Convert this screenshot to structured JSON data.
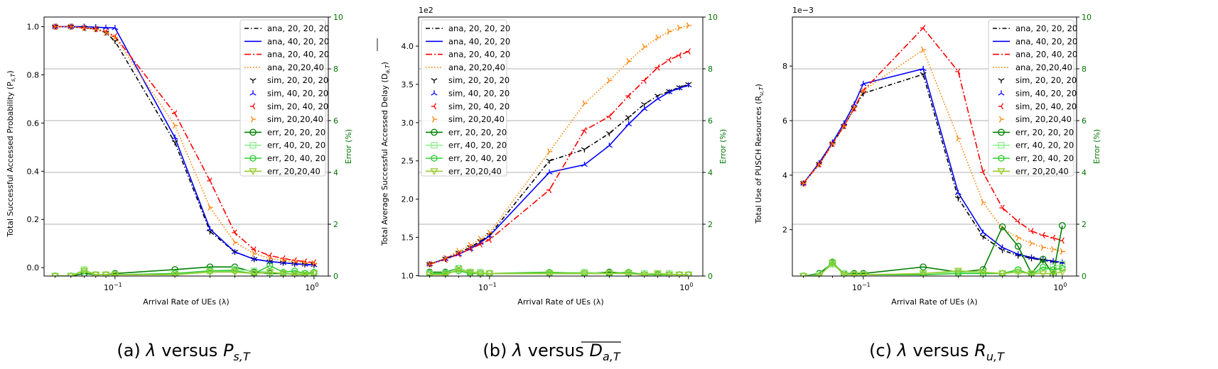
{
  "chart_data": [
    {
      "type": "line",
      "caption": {
        "pre": "(a) ",
        "mid": " versus ",
        "lambda": "λ",
        "sym": "P",
        "sub": "s,T",
        "overline": false
      },
      "xlabel": "Arrival Rate of UEs (λ)",
      "ylabel": "Total Successful Accessed Probability (P",
      "ylabel_sub": "s,T",
      "ylabel_post": ")",
      "y2label": "Error (%)",
      "xscale": "log",
      "xlim": [
        0.044,
        1.18
      ],
      "ylim": [
        -0.035,
        1.04
      ],
      "yticks": [
        0.0,
        0.2,
        0.4,
        0.6,
        0.8,
        1.0
      ],
      "ytick_labels": [
        "0.0",
        "0.2",
        "0.4",
        "0.6",
        "0.8",
        "1.0"
      ],
      "y_multiplier": "",
      "y2lim": [
        0,
        10
      ],
      "y2ticks": [
        0,
        2,
        4,
        6,
        8,
        10
      ],
      "y2tick_labels": [
        "0",
        "2",
        "4",
        "6",
        "8",
        "10"
      ],
      "xtick_labels": {
        "major1": "10",
        "major1_exp": "−1",
        "major2": "10",
        "major2_exp": "0"
      },
      "grid": "y2-axis horizontal",
      "legend_position": "upper-right",
      "x": [
        0.05,
        0.06,
        0.07,
        0.08,
        0.09,
        0.1,
        0.2,
        0.3,
        0.4,
        0.5,
        0.6,
        0.7,
        0.8,
        0.9,
        1.0
      ],
      "series": [
        {
          "name": "ana, 20, 20, 20",
          "color": "#000000",
          "dash": "6,3,1.5,3",
          "values": [
            1.0,
            1.0,
            0.995,
            0.99,
            0.975,
            0.94,
            0.52,
            0.15,
            0.065,
            0.035,
            0.025,
            0.02,
            0.016,
            0.013,
            0.011
          ]
        },
        {
          "name": "ana, 40, 20, 20",
          "color": "#0000ff",
          "dash": "",
          "values": [
            1.0,
            1.0,
            1.0,
            0.998,
            0.996,
            0.995,
            0.54,
            0.16,
            0.065,
            0.035,
            0.025,
            0.02,
            0.016,
            0.013,
            0.011
          ]
        },
        {
          "name": "ana, 20, 40, 20",
          "color": "#ff0000",
          "dash": "9,3,2,3",
          "values": [
            1.0,
            1.0,
            0.995,
            0.99,
            0.98,
            0.96,
            0.64,
            0.36,
            0.145,
            0.075,
            0.05,
            0.038,
            0.03,
            0.025,
            0.021
          ]
        },
        {
          "name": "ana, 20,20,40",
          "color": "#ff8000",
          "dash": "1.5,2.5",
          "values": [
            1.0,
            1.0,
            0.995,
            0.99,
            0.975,
            0.955,
            0.59,
            0.25,
            0.105,
            0.058,
            0.038,
            0.03,
            0.024,
            0.02,
            0.017
          ]
        },
        {
          "name": "sim, 20, 20, 20",
          "color": "#000000",
          "dash": "none",
          "values": [
            1.0,
            1.0,
            0.995,
            0.99,
            0.975,
            0.94,
            0.52,
            0.15,
            0.065,
            0.035,
            0.025,
            0.02,
            0.016,
            0.013,
            0.011
          ]
        },
        {
          "name": "sim, 40, 20, 20",
          "color": "#0000ff",
          "dash": "none",
          "values": [
            1.0,
            1.0,
            1.0,
            0.998,
            0.996,
            0.995,
            0.54,
            0.16,
            0.065,
            0.035,
            0.025,
            0.02,
            0.016,
            0.013,
            0.011
          ]
        },
        {
          "name": "sim, 20, 40, 20",
          "color": "#ff0000",
          "dash": "none",
          "values": [
            1.0,
            1.0,
            0.995,
            0.99,
            0.98,
            0.96,
            0.64,
            0.36,
            0.145,
            0.075,
            0.05,
            0.038,
            0.03,
            0.025,
            0.021
          ]
        },
        {
          "name": "sim, 20,20,40",
          "color": "#ff8000",
          "dash": "none",
          "values": [
            1.0,
            1.0,
            0.995,
            0.99,
            0.975,
            0.955,
            0.59,
            0.25,
            0.105,
            0.058,
            0.038,
            0.03,
            0.024,
            0.02,
            0.017
          ]
        },
        {
          "name": "err, 20, 20, 20",
          "color": "#008000",
          "dash": "",
          "axis": "y2",
          "values": [
            0.0,
            0.0,
            0.1,
            0.05,
            0.05,
            0.1,
            0.25,
            0.35,
            0.35,
            0.15,
            0.1,
            0.1,
            0.1,
            0.1,
            0.1
          ]
        },
        {
          "name": "err, 40, 20, 20",
          "color": "#90ee90",
          "dash": "",
          "axis": "y2",
          "values": [
            0.0,
            0.0,
            0.25,
            0.05,
            0.05,
            0.05,
            0.1,
            0.2,
            0.25,
            0.2,
            0.15,
            0.1,
            0.1,
            0.1,
            0.1
          ]
        },
        {
          "name": "err, 20, 40, 20",
          "color": "#32cd32",
          "dash": "",
          "axis": "y2",
          "values": [
            0.0,
            0.0,
            0.2,
            0.05,
            0.05,
            0.05,
            0.1,
            0.2,
            0.2,
            0.1,
            0.4,
            0.15,
            0.2,
            0.1,
            0.15
          ]
        },
        {
          "name": "err, 20,20,40",
          "color": "#9acd32",
          "dash": "",
          "axis": "y2",
          "values": [
            0.0,
            0.0,
            0.2,
            0.05,
            0.05,
            0.05,
            0.05,
            0.15,
            0.15,
            0.1,
            0.15,
            0.1,
            0.05,
            0.05,
            0.1
          ]
        }
      ]
    },
    {
      "type": "line",
      "caption": {
        "pre": "(b) ",
        "mid": " versus ",
        "lambda": "λ",
        "sym": "D",
        "sub": "a,T",
        "overline": true
      },
      "xlabel": "Arrival Rate of UEs (λ)",
      "ylabel": "Total Average Successful Accessed Delay (D",
      "ylabel_sub": "a,T",
      "ylabel_post": ")",
      "y2label": "Error (%)",
      "xscale": "log",
      "xlim": [
        0.044,
        1.18
      ],
      "ylim": [
        0.995,
        4.38
      ],
      "yticks": [
        1.0,
        1.5,
        2.0,
        2.5,
        3.0,
        3.5,
        4.0
      ],
      "ytick_labels": [
        "1.0",
        "1.5",
        "2.0",
        "2.5",
        "3.0",
        "3.5",
        "4.0"
      ],
      "y_multiplier": "1e2",
      "y2lim": [
        0,
        10
      ],
      "y2ticks": [
        0,
        2,
        4,
        6,
        8,
        10
      ],
      "y2tick_labels": [
        "0",
        "2",
        "4",
        "6",
        "8",
        "10"
      ],
      "xtick_labels": {
        "major1": "10",
        "major1_exp": "−1",
        "major2": "10",
        "major2_exp": "0"
      },
      "grid": "y2-axis horizontal",
      "legend_position": "upper-left",
      "x": [
        0.05,
        0.06,
        0.07,
        0.08,
        0.09,
        0.1,
        0.2,
        0.3,
        0.4,
        0.5,
        0.6,
        0.7,
        0.8,
        0.9,
        1.0
      ],
      "series": [
        {
          "name": "ana, 20, 20, 20",
          "color": "#000000",
          "dash": "6,3,1.5,3",
          "values": [
            1.15,
            1.22,
            1.3,
            1.37,
            1.45,
            1.53,
            2.5,
            2.65,
            2.86,
            3.07,
            3.24,
            3.35,
            3.41,
            3.46,
            3.5
          ]
        },
        {
          "name": "ana, 40, 20, 20",
          "color": "#0000ff",
          "dash": "",
          "values": [
            1.15,
            1.22,
            1.28,
            1.35,
            1.43,
            1.52,
            2.35,
            2.45,
            2.7,
            2.98,
            3.18,
            3.31,
            3.4,
            3.45,
            3.49
          ]
        },
        {
          "name": "ana, 20, 40, 20",
          "color": "#ff0000",
          "dash": "9,3,2,3",
          "values": [
            1.15,
            1.21,
            1.28,
            1.35,
            1.41,
            1.47,
            2.12,
            2.9,
            3.08,
            3.35,
            3.55,
            3.72,
            3.82,
            3.88,
            3.93
          ]
        },
        {
          "name": "ana, 20,20,40",
          "color": "#ff8000",
          "dash": "1.5,2.5",
          "values": [
            1.15,
            1.23,
            1.32,
            1.4,
            1.48,
            1.56,
            2.62,
            3.25,
            3.55,
            3.8,
            3.99,
            4.11,
            4.19,
            4.24,
            4.27
          ]
        },
        {
          "name": "sim, 20, 20, 20",
          "color": "#000000",
          "dash": "none",
          "values": [
            1.15,
            1.22,
            1.3,
            1.37,
            1.45,
            1.53,
            2.5,
            2.65,
            2.86,
            3.07,
            3.24,
            3.35,
            3.41,
            3.46,
            3.5
          ]
        },
        {
          "name": "sim, 40, 20, 20",
          "color": "#0000ff",
          "dash": "none",
          "values": [
            1.15,
            1.22,
            1.28,
            1.35,
            1.43,
            1.52,
            2.35,
            2.45,
            2.7,
            2.98,
            3.18,
            3.31,
            3.4,
            3.45,
            3.49
          ]
        },
        {
          "name": "sim, 20, 40, 20",
          "color": "#ff0000",
          "dash": "none",
          "values": [
            1.15,
            1.21,
            1.28,
            1.35,
            1.41,
            1.47,
            2.12,
            2.9,
            3.08,
            3.35,
            3.55,
            3.72,
            3.82,
            3.88,
            3.93
          ]
        },
        {
          "name": "sim, 20,20,40",
          "color": "#ff8000",
          "dash": "none",
          "values": [
            1.15,
            1.23,
            1.32,
            1.4,
            1.48,
            1.56,
            2.62,
            3.25,
            3.55,
            3.8,
            3.99,
            4.11,
            4.19,
            4.24,
            4.27
          ]
        },
        {
          "name": "err, 20, 20, 20",
          "color": "#008000",
          "dash": "",
          "axis": "y2",
          "values": [
            0.15,
            0.15,
            0.3,
            0.15,
            0.1,
            0.1,
            0.1,
            0.1,
            0.15,
            0.1,
            0.05,
            0.05,
            0.05,
            0.05,
            0.05
          ]
        },
        {
          "name": "err, 40, 20, 20",
          "color": "#90ee90",
          "dash": "",
          "axis": "y2",
          "values": [
            0.1,
            0.1,
            0.3,
            0.15,
            0.15,
            0.1,
            0.1,
            0.15,
            0.1,
            0.1,
            0.1,
            0.1,
            0.1,
            0.05,
            0.05
          ]
        },
        {
          "name": "err, 20, 40, 20",
          "color": "#32cd32",
          "dash": "",
          "axis": "y2",
          "values": [
            0.1,
            0.1,
            0.2,
            0.1,
            0.1,
            0.1,
            0.15,
            0.1,
            0.1,
            0.15,
            0.05,
            0.05,
            0.05,
            0.05,
            0.05
          ]
        },
        {
          "name": "err, 20,20,40",
          "color": "#9acd32",
          "dash": "",
          "axis": "y2",
          "values": [
            0.05,
            0.05,
            0.25,
            0.15,
            0.1,
            0.1,
            0.1,
            0.1,
            0.1,
            0.1,
            0.05,
            0.1,
            0.05,
            0.05,
            0.05
          ]
        }
      ]
    },
    {
      "type": "line",
      "caption": {
        "pre": "(c) ",
        "mid": " versus ",
        "lambda": "λ",
        "sym": "R",
        "sub": "u,T",
        "overline": false
      },
      "xlabel": "Arrival Rate of UEs (λ)",
      "ylabel": "Total Use of PUSCH Resources (R",
      "ylabel_sub": "u,T",
      "ylabel_post": ")",
      "y2label": "Error (%)",
      "xscale": "log",
      "xlim": [
        0.044,
        1.18
      ],
      "ylim": [
        0.3,
        9.8
      ],
      "yticks": [
        2,
        4,
        6,
        8
      ],
      "ytick_labels": [
        "2",
        "4",
        "6",
        "8"
      ],
      "y_multiplier": "1e−3",
      "y2lim": [
        0,
        10
      ],
      "y2ticks": [
        0,
        2,
        4,
        6,
        8,
        10
      ],
      "y2tick_labels": [
        "0",
        "2",
        "4",
        "6",
        "8",
        "10"
      ],
      "xtick_labels": {
        "major1": "10",
        "major1_exp": "−1",
        "major2": "10",
        "major2_exp": "0"
      },
      "grid": "y2-axis horizontal",
      "legend_position": "upper-right",
      "x": [
        0.05,
        0.06,
        0.07,
        0.08,
        0.09,
        0.1,
        0.2,
        0.3,
        0.4,
        0.5,
        0.6,
        0.7,
        0.8,
        0.9,
        1.0
      ],
      "series": [
        {
          "name": "ana, 20, 20, 20",
          "color": "#000000",
          "dash": "6,3,1.5,3",
          "values": [
            3.7,
            4.4,
            5.15,
            5.8,
            6.45,
            7.0,
            7.7,
            3.15,
            1.75,
            1.25,
            1.05,
            0.95,
            0.88,
            0.82,
            0.78
          ]
        },
        {
          "name": "ana, 40, 20, 20",
          "color": "#0000ff",
          "dash": "",
          "values": [
            3.7,
            4.45,
            5.2,
            5.9,
            6.6,
            7.35,
            7.9,
            3.35,
            1.9,
            1.35,
            1.1,
            0.98,
            0.9,
            0.85,
            0.8
          ]
        },
        {
          "name": "ana, 20, 40, 20",
          "color": "#ff0000",
          "dash": "9,3,2,3",
          "values": [
            3.7,
            4.4,
            5.15,
            5.8,
            6.45,
            7.1,
            9.4,
            7.8,
            4.1,
            2.8,
            2.3,
            1.95,
            1.8,
            1.7,
            1.6
          ]
        },
        {
          "name": "ana, 20,20,40",
          "color": "#ff8000",
          "dash": "1.5,2.5",
          "values": [
            3.7,
            4.4,
            5.15,
            5.8,
            6.5,
            7.1,
            8.6,
            5.35,
            3.0,
            2.05,
            1.7,
            1.5,
            1.35,
            1.28,
            1.2
          ]
        },
        {
          "name": "sim, 20, 20, 20",
          "color": "#000000",
          "dash": "none",
          "values": [
            3.7,
            4.4,
            5.15,
            5.8,
            6.45,
            7.0,
            7.7,
            3.15,
            1.75,
            1.25,
            1.05,
            0.95,
            0.88,
            0.82,
            0.78
          ]
        },
        {
          "name": "sim, 40, 20, 20",
          "color": "#0000ff",
          "dash": "none",
          "values": [
            3.7,
            4.45,
            5.2,
            5.9,
            6.6,
            7.35,
            7.9,
            3.35,
            1.9,
            1.35,
            1.1,
            0.98,
            0.9,
            0.85,
            0.8
          ]
        },
        {
          "name": "sim, 20, 40, 20",
          "color": "#ff0000",
          "dash": "none",
          "values": [
            3.7,
            4.4,
            5.15,
            5.8,
            6.45,
            7.1,
            9.4,
            7.8,
            4.1,
            2.8,
            2.3,
            1.95,
            1.8,
            1.7,
            1.6
          ]
        },
        {
          "name": "sim, 20,20,40",
          "color": "#ff8000",
          "dash": "none",
          "values": [
            3.7,
            4.4,
            5.15,
            5.8,
            6.5,
            7.1,
            8.6,
            5.35,
            3.0,
            2.05,
            1.7,
            1.5,
            1.35,
            1.28,
            1.2
          ]
        },
        {
          "name": "err, 20, 20, 20",
          "color": "#008000",
          "dash": "",
          "axis": "y2",
          "values": [
            0.0,
            0.1,
            0.5,
            0.1,
            0.1,
            0.1,
            0.35,
            0.15,
            0.25,
            1.9,
            1.15,
            0.1,
            0.65,
            0.05,
            1.95
          ]
        },
        {
          "name": "err, 40, 20, 20",
          "color": "#90ee90",
          "dash": "",
          "axis": "y2",
          "values": [
            0.0,
            0.05,
            0.45,
            0.1,
            0.05,
            0.05,
            0.1,
            0.15,
            0.1,
            0.1,
            0.2,
            0.1,
            0.2,
            0.35,
            0.45
          ]
        },
        {
          "name": "err, 20, 40, 20",
          "color": "#32cd32",
          "dash": "",
          "axis": "y2",
          "values": [
            0.0,
            0.0,
            0.55,
            0.05,
            0.05,
            0.05,
            0.05,
            0.1,
            0.1,
            0.1,
            0.25,
            0.05,
            0.35,
            0.25,
            0.3
          ]
        },
        {
          "name": "err, 20,20,40",
          "color": "#9acd32",
          "dash": "",
          "axis": "y2",
          "values": [
            0.0,
            0.0,
            0.5,
            0.05,
            0.05,
            0.05,
            0.1,
            0.2,
            0.15,
            0.1,
            0.15,
            0.1,
            0.1,
            0.1,
            0.15
          ]
        }
      ]
    }
  ]
}
